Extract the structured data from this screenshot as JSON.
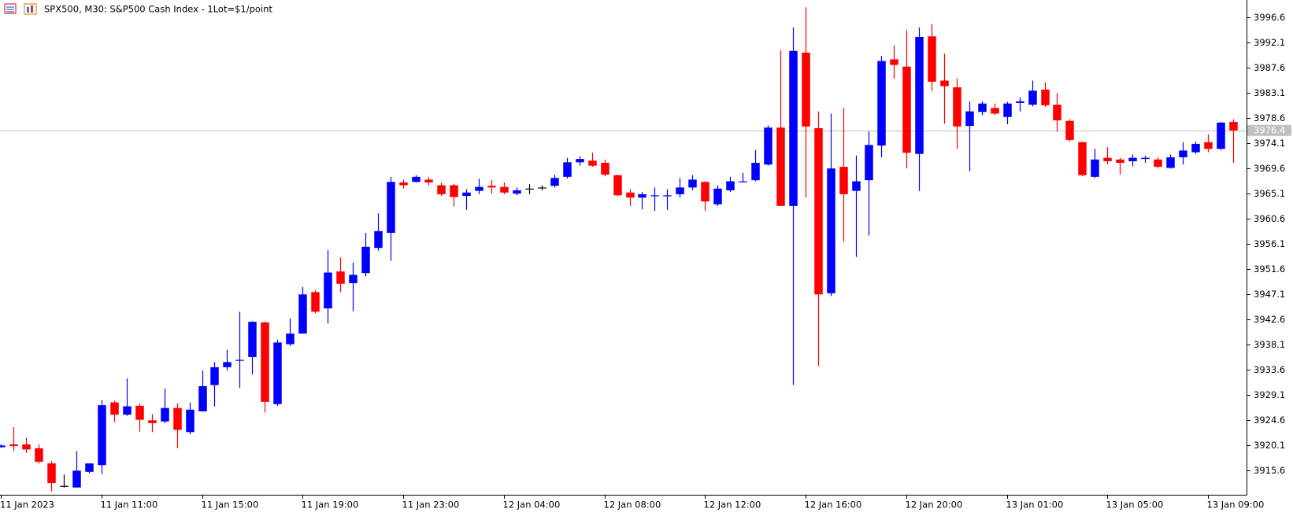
{
  "chart_data": {
    "type": "candlestick",
    "title": "SPX500, M30:  S&P500 Cash Index - 1Lot=$1/point",
    "categories": [
      "11 Jan 2023",
      null,
      null,
      null,
      null,
      null,
      null,
      null,
      "11 Jan 11:00",
      null,
      null,
      null,
      null,
      null,
      null,
      null,
      "11 Jan 15:00",
      null,
      null,
      null,
      null,
      null,
      null,
      null,
      "11 Jan 19:00",
      null,
      null,
      null,
      null,
      null,
      null,
      null,
      "11 Jan 23:00",
      null,
      null,
      null,
      null,
      null,
      null,
      null,
      "12 Jan 04:00",
      null,
      null,
      null,
      null,
      null,
      null,
      null,
      "12 Jan 08:00",
      null,
      null,
      null,
      null,
      null,
      null,
      null,
      "12 Jan 12:00",
      null,
      null,
      null,
      null,
      null,
      null,
      null,
      "12 Jan 16:00",
      null,
      null,
      null,
      null,
      null,
      null,
      null,
      "12 Jan 20:00",
      null,
      null,
      null,
      null,
      null,
      null,
      null,
      "13 Jan 01:00",
      null,
      null,
      null,
      null,
      null,
      null,
      null,
      "13 Jan 05:00",
      null,
      null,
      null,
      null,
      null,
      null,
      null,
      "13 Jan 09:00",
      null,
      null
    ],
    "open": [
      3919.8,
      3920.3,
      3920.3,
      3919.6,
      3916.9,
      3912.9,
      3912.6,
      3915.4,
      3916.6,
      3927.8,
      3925.6,
      3927.2,
      3924.6,
      3924.4,
      3926.8,
      3922.5,
      3926.2,
      3930.9,
      3934.1,
      3935.3,
      3935.9,
      3942.1,
      3927.5,
      3938.2,
      3940.1,
      3947.5,
      3944.6,
      3951.2,
      3949.1,
      3950.9,
      3955.4,
      3958.1,
      3967.1,
      3967.2,
      3967.6,
      3966.6,
      3966.6,
      3964.7,
      3965.6,
      3966.5,
      3966.3,
      3965.1,
      3966.0,
      3966.2,
      3966.5,
      3968.1,
      3970.7,
      3971.0,
      3970.6,
      3968.4,
      3965.3,
      3964.4,
      3964.7,
      3964.7,
      3965.0,
      3966.2,
      3967.2,
      3963.2,
      3965.7,
      3967.2,
      3967.5,
      3970.3,
      3976.9,
      3962.9,
      3990.3,
      3976.8,
      3947.3,
      3969.9,
      3965.6,
      3967.5,
      3973.7,
      3989.1,
      3987.8,
      3972.2,
      3993.2,
      3985.3,
      3984.1,
      3977.2,
      3979.7,
      3980.4,
      3978.8,
      3981.3,
      3981.0,
      3983.7,
      3981.0,
      3978.1,
      3974.3,
      3968.1,
      3971.5,
      3971.2,
      3970.9,
      3971.3,
      3971.2,
      3969.7,
      3971.6,
      3972.5,
      3974.3,
      3973.1,
      3977.9
    ],
    "high": [
      3920.3,
      3923.4,
      3921.5,
      3920.3,
      3917.3,
      3914.9,
      3919.1,
      3916.9,
      3928.2,
      3928.1,
      3932.1,
      3927.6,
      3925.7,
      3930.3,
      3927.6,
      3927.8,
      3933.5,
      3935.0,
      3937.2,
      3944.0,
      3942.3,
      3942.2,
      3939.0,
      3942.8,
      3948.4,
      3947.8,
      3955.0,
      3953.7,
      3952.8,
      3958.1,
      3961.6,
      3968.1,
      3967.6,
      3968.4,
      3968.1,
      3967.1,
      3966.8,
      3965.9,
      3967.8,
      3967.5,
      3967.1,
      3966.2,
      3966.8,
      3966.6,
      3968.5,
      3971.5,
      3971.8,
      3972.4,
      3971.2,
      3968.5,
      3965.9,
      3965.4,
      3966.2,
      3965.9,
      3967.9,
      3968.4,
      3967.3,
      3966.6,
      3968.1,
      3968.8,
      3972.9,
      3977.3,
      3990.7,
      3994.8,
      3998.4,
      3979.8,
      3979.4,
      3980.4,
      3971.9,
      3976.2,
      3989.7,
      3991.6,
      3994.3,
      3994.8,
      3995.4,
      3990.1,
      3985.7,
      3981.6,
      3981.6,
      3981.2,
      3981.5,
      3982.3,
      3985.3,
      3985.0,
      3983.1,
      3978.4,
      3974.4,
      3973.1,
      3973.4,
      3971.5,
      3972.1,
      3971.9,
      3971.6,
      3972.1,
      3974.3,
      3974.4,
      3975.7,
      3977.9,
      3978.4
    ],
    "low": [
      3919.7,
      3919.1,
      3918.8,
      3916.9,
      3911.9,
      3912.6,
      3912.6,
      3915.1,
      3915.0,
      3924.3,
      3925.4,
      3922.6,
      3922.5,
      3924.1,
      3919.6,
      3922.1,
      3926.2,
      3927.1,
      3933.5,
      3930.4,
      3932.8,
      3926.0,
      3927.2,
      3937.9,
      3940.1,
      3943.7,
      3941.9,
      3947.5,
      3944.1,
      3950.3,
      3954.9,
      3953.1,
      3966.0,
      3967.1,
      3966.6,
      3964.7,
      3962.8,
      3962.2,
      3965.0,
      3965.1,
      3965.0,
      3964.8,
      3965.0,
      3965.7,
      3966.2,
      3967.8,
      3970.1,
      3969.9,
      3968.2,
      3964.7,
      3962.9,
      3962.3,
      3962.0,
      3962.2,
      3964.4,
      3965.7,
      3962.0,
      3962.9,
      3965.4,
      3967.1,
      3967.3,
      3970.1,
      3962.9,
      3930.9,
      3964.4,
      3934.3,
      3946.8,
      3956.5,
      3953.8,
      3957.6,
      3971.6,
      3985.6,
      3969.6,
      3965.6,
      3983.4,
      3977.6,
      3973.1,
      3969.1,
      3979.1,
      3979.1,
      3977.5,
      3979.8,
      3980.7,
      3980.6,
      3976.2,
      3974.4,
      3968.2,
      3967.9,
      3970.4,
      3968.5,
      3970.0,
      3970.6,
      3969.6,
      3969.6,
      3970.3,
      3972.2,
      3972.5,
      3972.9,
      3970.6
    ],
    "close": [
      3920.1,
      3920.0,
      3919.4,
      3917.2,
      3913.4,
      3912.9,
      3915.6,
      3916.9,
      3927.3,
      3925.6,
      3927.1,
      3924.7,
      3924.1,
      3926.8,
      3922.9,
      3926.5,
      3930.7,
      3934.1,
      3935.0,
      3935.4,
      3942.2,
      3927.9,
      3938.5,
      3940.1,
      3947.1,
      3944.0,
      3951.0,
      3949.0,
      3950.6,
      3955.6,
      3958.4,
      3967.2,
      3966.6,
      3968.1,
      3967.1,
      3965.0,
      3964.5,
      3965.3,
      3966.3,
      3966.2,
      3965.3,
      3965.7,
      3966.0,
      3966.2,
      3967.9,
      3970.7,
      3971.3,
      3970.1,
      3968.5,
      3964.8,
      3964.4,
      3965.0,
      3964.8,
      3964.8,
      3966.2,
      3967.6,
      3963.7,
      3966.0,
      3967.3,
      3967.3,
      3970.6,
      3976.9,
      3962.9,
      3990.6,
      3977.1,
      3947.1,
      3969.6,
      3965.0,
      3967.3,
      3973.8,
      3988.8,
      3988.1,
      3972.4,
      3993.1,
      3985.1,
      3984.3,
      3977.1,
      3979.8,
      3981.2,
      3979.4,
      3981.2,
      3981.6,
      3983.5,
      3980.9,
      3978.2,
      3974.7,
      3968.4,
      3971.2,
      3970.9,
      3970.6,
      3971.5,
      3971.5,
      3969.9,
      3971.6,
      3972.8,
      3974.0,
      3973.1,
      3977.8,
      3976.4
    ],
    "up_color": "#0000ff",
    "down_color": "#ff0000",
    "doji_color": "#000000",
    "ylim": [
      3911.3,
      3999.7
    ],
    "yticks": [
      3915.6,
      3920.1,
      3924.6,
      3929.1,
      3933.6,
      3938.1,
      3942.6,
      3947.1,
      3951.6,
      3956.1,
      3960.6,
      3965.1,
      3969.6,
      3974.1,
      3978.6,
      3983.1,
      3987.6,
      3992.1,
      3996.6
    ],
    "last_price": 3976.4,
    "last_price_color": "#c0c0c0",
    "grid": false
  }
}
